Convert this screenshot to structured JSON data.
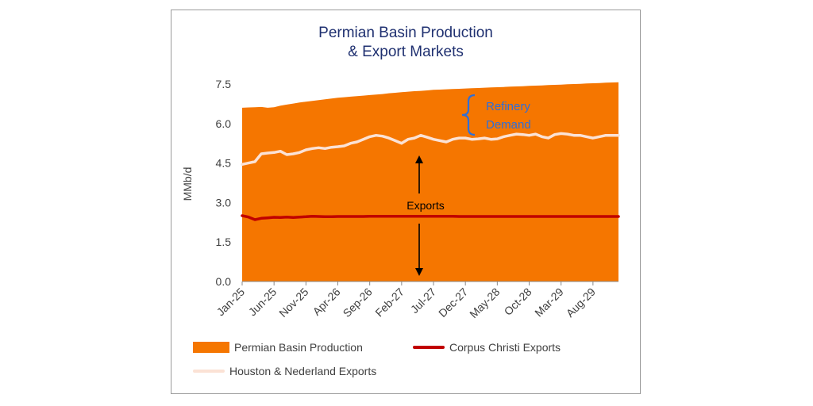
{
  "chart_data": {
    "type": "area",
    "title_line1": "Permian Basin Production",
    "title_line2": "& Export Markets",
    "ylabel": "MMb/d",
    "ylim": [
      0,
      7.5
    ],
    "yticks": [
      "0.0",
      "1.5",
      "3.0",
      "4.5",
      "6.0",
      "7.5"
    ],
    "ytick_values": [
      0,
      1.5,
      3.0,
      4.5,
      6.0,
      7.5
    ],
    "xtick_labels": [
      "Jan-25",
      "Jun-25",
      "Nov-25",
      "Apr-26",
      "Sep-26",
      "Feb-27",
      "Jul-27",
      "Dec-27",
      "May-28",
      "Oct-28",
      "Mar-29",
      "Aug-29"
    ],
    "x_start": "Jan-25",
    "x_end": "Dec-29",
    "grid": false,
    "legend_position": "bottom",
    "series": [
      {
        "name": "Permian Basin Production",
        "type": "area",
        "color": "#f57600",
        "values": [
          6.6,
          6.61,
          6.62,
          6.63,
          6.6,
          6.62,
          6.68,
          6.72,
          6.76,
          6.8,
          6.83,
          6.86,
          6.89,
          6.92,
          6.95,
          6.98,
          7.0,
          7.02,
          7.04,
          7.06,
          7.08,
          7.1,
          7.12,
          7.15,
          7.17,
          7.19,
          7.21,
          7.23,
          7.24,
          7.26,
          7.28,
          7.29,
          7.3,
          7.31,
          7.32,
          7.33,
          7.34,
          7.35,
          7.36,
          7.37,
          7.38,
          7.39,
          7.4,
          7.41,
          7.42,
          7.43,
          7.44,
          7.45,
          7.46,
          7.47,
          7.48,
          7.49,
          7.5,
          7.51,
          7.52,
          7.53,
          7.54,
          7.55,
          7.56,
          7.57
        ]
      },
      {
        "name": "Corpus Christi Exports",
        "type": "line",
        "color": "#c00000",
        "values": [
          2.5,
          2.45,
          2.35,
          2.4,
          2.42,
          2.44,
          2.43,
          2.45,
          2.43,
          2.45,
          2.46,
          2.48,
          2.47,
          2.46,
          2.46,
          2.47,
          2.47,
          2.47,
          2.47,
          2.47,
          2.48,
          2.48,
          2.48,
          2.48,
          2.48,
          2.48,
          2.48,
          2.48,
          2.48,
          2.48,
          2.48,
          2.48,
          2.48,
          2.48,
          2.47,
          2.47,
          2.47,
          2.47,
          2.47,
          2.47,
          2.47,
          2.47,
          2.47,
          2.47,
          2.47,
          2.47,
          2.47,
          2.47,
          2.47,
          2.47,
          2.47,
          2.47,
          2.47,
          2.47,
          2.47,
          2.47,
          2.47,
          2.47,
          2.47,
          2.47
        ]
      },
      {
        "name": "Houston & Nederland Exports",
        "type": "line",
        "color": "#fbe2d5",
        "values": [
          4.45,
          4.5,
          4.55,
          4.85,
          4.88,
          4.9,
          4.95,
          4.82,
          4.85,
          4.9,
          5.0,
          5.05,
          5.08,
          5.05,
          5.1,
          5.12,
          5.15,
          5.25,
          5.3,
          5.4,
          5.5,
          5.55,
          5.52,
          5.45,
          5.35,
          5.25,
          5.4,
          5.45,
          5.55,
          5.48,
          5.4,
          5.35,
          5.3,
          5.4,
          5.45,
          5.45,
          5.4,
          5.42,
          5.45,
          5.4,
          5.42,
          5.5,
          5.55,
          5.6,
          5.58,
          5.55,
          5.6,
          5.5,
          5.45,
          5.58,
          5.62,
          5.6,
          5.55,
          5.55,
          5.5,
          5.45,
          5.5,
          5.55,
          5.55,
          5.55
        ]
      }
    ],
    "annotations": {
      "refinery_label_line1": "Refinery",
      "refinery_label_line2": "Demand",
      "refinery_color": "#2e6fd9",
      "exports_label": "Exports"
    }
  }
}
